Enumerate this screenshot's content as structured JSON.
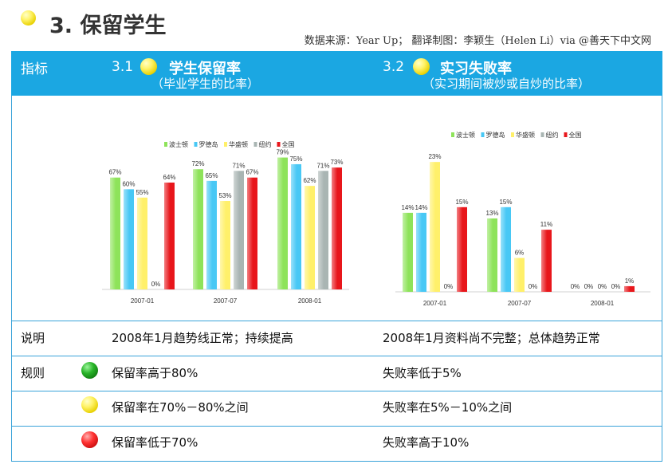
{
  "page": {
    "title": "3. 保留学生",
    "source": "数据来源：Year Up； 翻译制图：李颖生（Helen Li）via @善天下中文网"
  },
  "header": {
    "indicator_label": "指标",
    "col1_number": "3.1",
    "col1_title": "学生保留率",
    "col1_subtitle": "（毕业学生的比率）",
    "col2_number": "3.2",
    "col2_title": "实习失败率",
    "col2_subtitle": "（实习期间被炒或自炒的比率）"
  },
  "rows": {
    "notes_label": "说明",
    "notes_left": "2008年1月趋势线正常；持续提高",
    "notes_right": "2008年1月资料尚不完整；总体趋势正常",
    "rules_label": "规则",
    "rule_green_left": "保留率高于80%",
    "rule_green_right": "失败率低于5%",
    "rule_yellow_left": "保留率在70%－80%之间",
    "rule_yellow_right": "失败率在5%－10%之间",
    "rule_red_left": "保留率低于70%",
    "rule_red_right": "失败率高于10%"
  },
  "colors": {
    "header_blue": "#1ba7e2",
    "series": [
      "#8ee35a",
      "#48c8f5",
      "#fff06a",
      "#a9b5b3",
      "#e8161b"
    ]
  },
  "chart_data": [
    {
      "type": "bar",
      "categories": [
        "2007-01",
        "2007-07",
        "2008-01"
      ],
      "series": [
        {
          "name": "波士顿",
          "values": [
            67,
            72,
            79
          ],
          "labels": [
            "67%",
            "72%",
            "79%"
          ]
        },
        {
          "name": "罗德岛",
          "values": [
            60,
            65,
            75
          ],
          "labels": [
            "60%",
            "65%",
            "75%"
          ]
        },
        {
          "name": "华盛顿",
          "values": [
            55,
            53,
            62
          ],
          "labels": [
            "55%",
            "53%",
            "62%"
          ]
        },
        {
          "name": "纽约",
          "values": [
            0,
            71,
            71
          ],
          "labels": [
            "0%",
            "71%",
            "71%"
          ]
        },
        {
          "name": "全国",
          "values": [
            64,
            67,
            73
          ],
          "labels": [
            "64%",
            "67%",
            "73%"
          ]
        }
      ],
      "ylim": [
        0,
        85
      ],
      "grid": false,
      "legend": "top"
    },
    {
      "type": "bar",
      "categories": [
        "2007-01",
        "2007-07",
        "2008-01"
      ],
      "series": [
        {
          "name": "波士顿",
          "values": [
            14,
            13,
            0
          ],
          "labels": [
            "14%",
            "13%",
            "0%"
          ]
        },
        {
          "name": "罗德岛",
          "values": [
            14,
            15,
            0
          ],
          "labels": [
            "14%",
            "15%",
            "0%"
          ]
        },
        {
          "name": "华盛顿",
          "values": [
            23,
            6,
            0
          ],
          "labels": [
            "23%",
            "6%",
            "0%"
          ]
        },
        {
          "name": "纽约",
          "values": [
            0,
            0,
            0
          ],
          "labels": [
            "0%",
            "0%",
            "0%"
          ]
        },
        {
          "name": "全国",
          "values": [
            15,
            11,
            1
          ],
          "labels": [
            "15%",
            "11%",
            "1%"
          ]
        }
      ],
      "ylim": [
        0,
        25
      ],
      "grid": false,
      "legend": "top"
    }
  ]
}
